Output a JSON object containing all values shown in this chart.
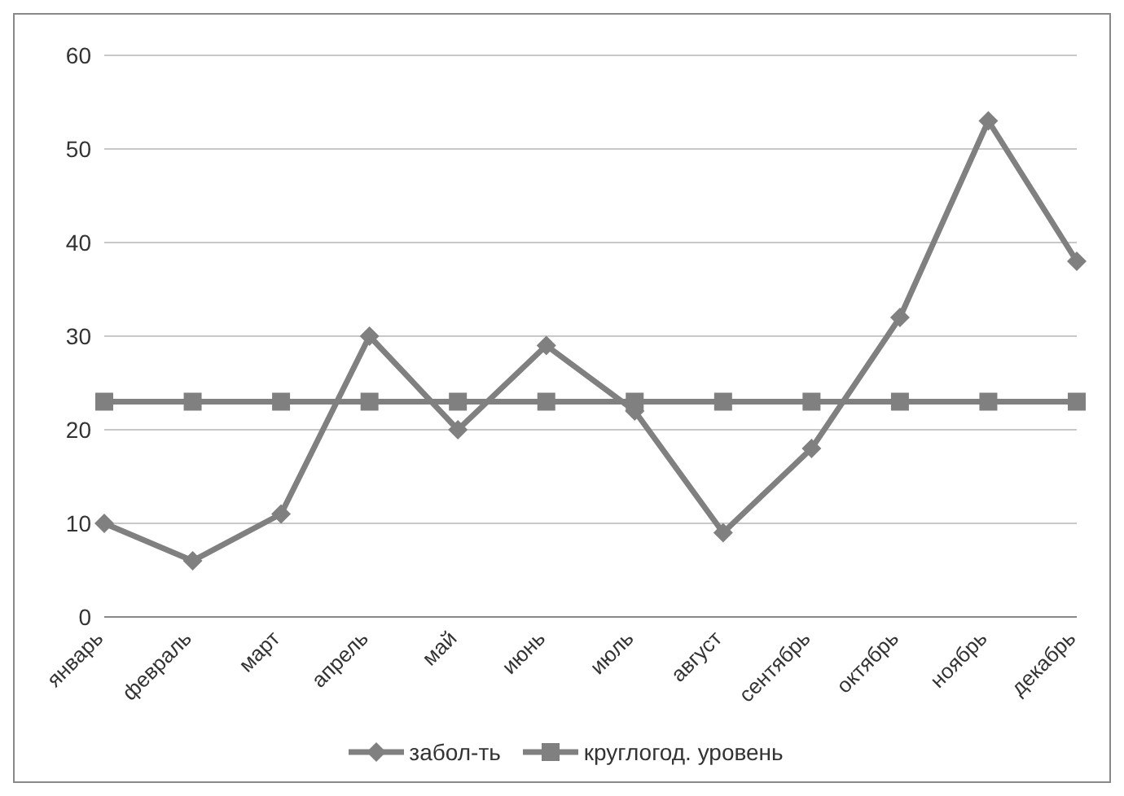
{
  "chart_data": {
    "type": "line",
    "categories": [
      "январь",
      "февраль",
      "март",
      "апрель",
      "май",
      "июнь",
      "июль",
      "август",
      "сентябрь",
      "октябрь",
      "ноябрь",
      "декабрь"
    ],
    "series": [
      {
        "name": "забол-ть",
        "color": "#808080",
        "marker": "diamond",
        "values": [
          10,
          6,
          11,
          30,
          20,
          29,
          22,
          9,
          18,
          32,
          53,
          38
        ]
      },
      {
        "name": "круглогод. уровень",
        "color": "#808080",
        "marker": "square",
        "values": [
          23,
          23,
          23,
          23,
          23,
          23,
          23,
          23,
          23,
          23,
          23,
          23
        ]
      }
    ],
    "ylim": [
      0,
      60
    ],
    "yticks": [
      0,
      10,
      20,
      30,
      40,
      50,
      60
    ],
    "grid": "y",
    "legend": "bottom"
  }
}
